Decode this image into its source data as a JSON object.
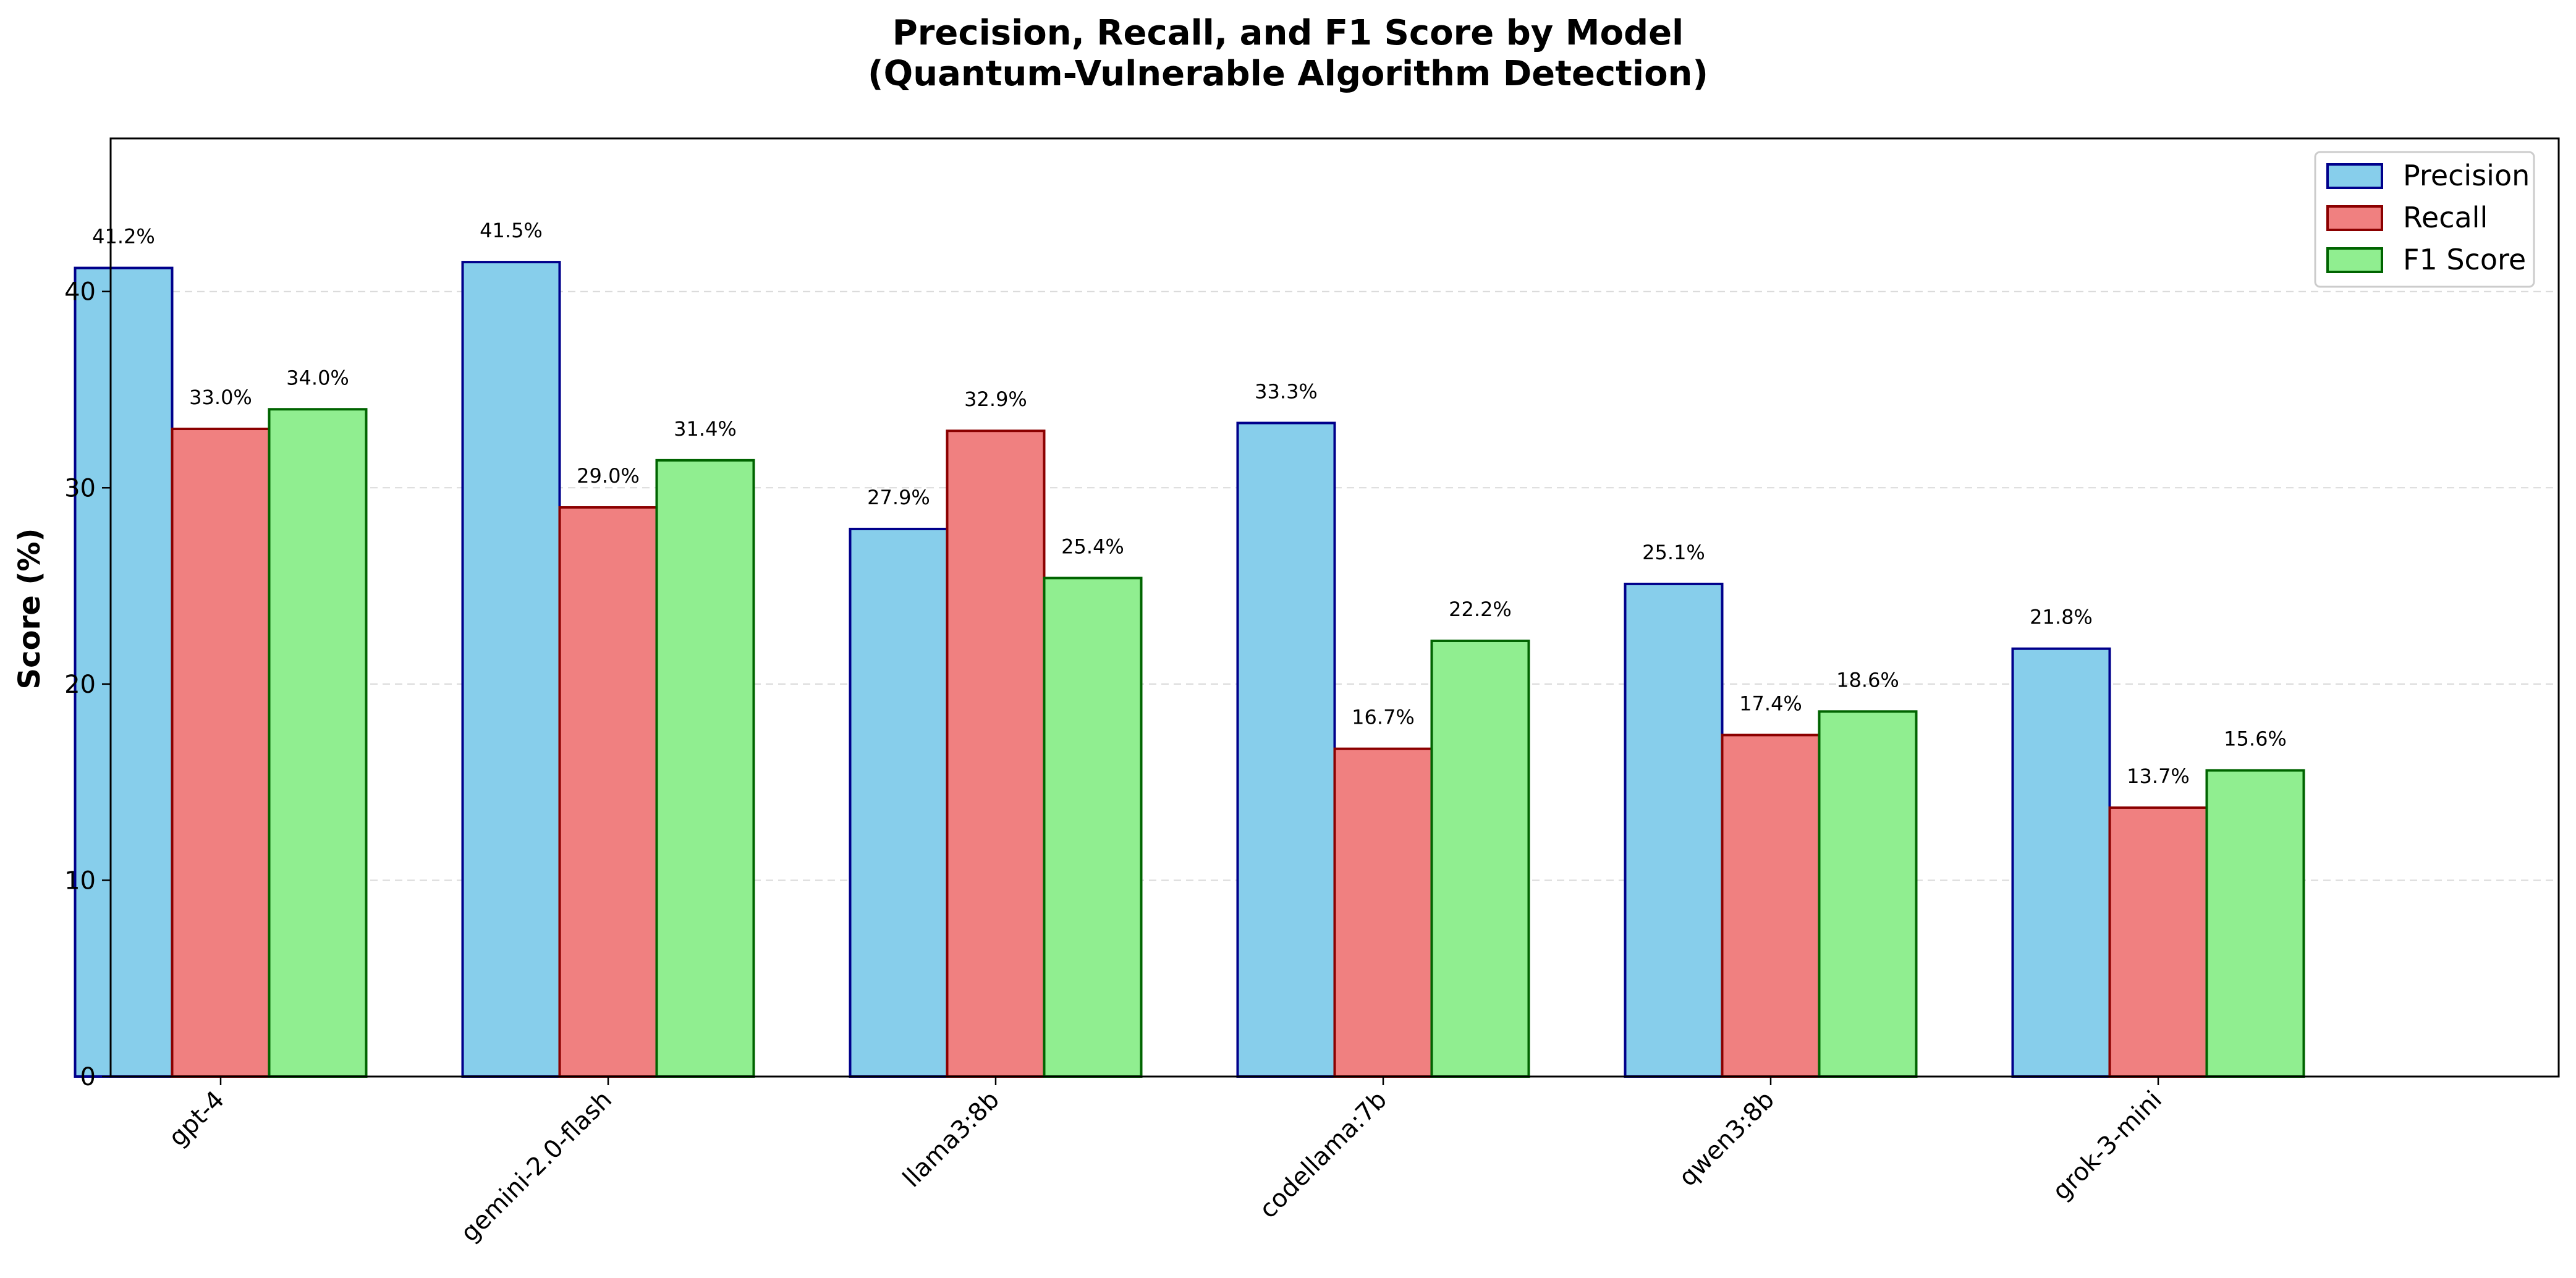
{
  "chart_data": {
    "type": "bar",
    "title": "Precision, Recall, and F1 Score by Model",
    "subtitle": "(Quantum-Vulnerable Algorithm Detection)",
    "xlabel": "",
    "ylabel": "Score (%)",
    "ylim": [
      0,
      47.8
    ],
    "yticks": [
      0,
      10,
      20,
      30,
      40
    ],
    "grid": true,
    "legend_position": "top-right",
    "categories": [
      "gpt-4",
      "gemini-2.0-flash",
      "llama3:8b",
      "codellama:7b",
      "qwen3:8b",
      "grok-3-mini"
    ],
    "series": [
      {
        "name": "Precision",
        "values": [
          41.2,
          41.5,
          27.9,
          33.3,
          25.1,
          21.8
        ],
        "labels": [
          "41.2%",
          "41.5%",
          "27.9%",
          "33.3%",
          "25.1%",
          "21.8%"
        ],
        "fill": "#87ceeb",
        "edge": "#00008b"
      },
      {
        "name": "Recall",
        "values": [
          33.0,
          29.0,
          32.9,
          16.7,
          17.4,
          13.7
        ],
        "labels": [
          "33.0%",
          "29.0%",
          "32.9%",
          "16.7%",
          "17.4%",
          "13.7%"
        ],
        "fill": "#f08080",
        "edge": "#8b0000"
      },
      {
        "name": "F1 Score",
        "values": [
          34.0,
          31.4,
          25.4,
          22.2,
          18.6,
          15.6
        ],
        "labels": [
          "34.0%",
          "31.4%",
          "25.4%",
          "22.2%",
          "18.6%",
          "15.6%"
        ],
        "fill": "#90ee90",
        "edge": "#006400"
      }
    ]
  }
}
